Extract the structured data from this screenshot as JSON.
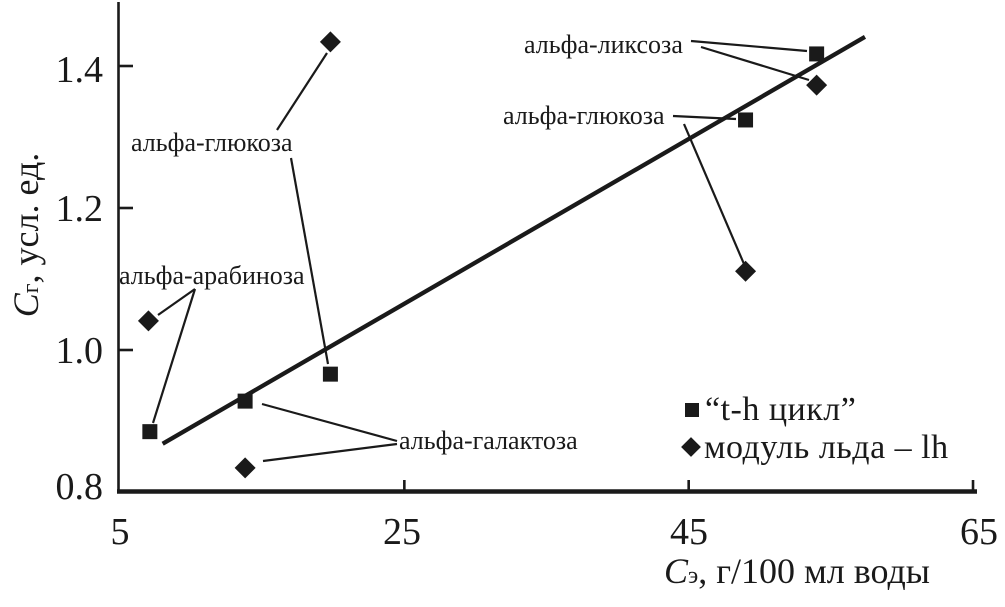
{
  "figure": {
    "background": "#ffffff",
    "ink_color": "#1a1a1a",
    "y_axis": {
      "title": {
        "symbol": "C",
        "subscript": "г",
        "rest": ", усл. ед."
      },
      "tick_labels": [
        "1.4",
        "1.2",
        "1.0",
        "0.8"
      ]
    },
    "x_axis": {
      "title": {
        "symbol": "C",
        "subscript": "э",
        "rest": ", г/100 мл воды"
      },
      "tick_labels": [
        "5",
        "25",
        "45",
        "65"
      ]
    },
    "annotations": {
      "glucose_left": "альфа-глюкоза",
      "arabinose": "альфа-арабиноза",
      "galactose": "альфа-галактоза",
      "lyxose": "альфа-ликсоза",
      "glucose_right": "альфа-глюкоза"
    },
    "legend": {
      "items": [
        {
          "marker": "square",
          "label": "“t-h цикл”"
        },
        {
          "marker": "diamond",
          "label": "модуль льда – lh"
        }
      ]
    }
  },
  "chart_data": {
    "type": "scatter",
    "title": "",
    "xlabel": "Cэ, г/100 мл воды",
    "ylabel": "Cг, усл. ед.",
    "xlim": [
      5,
      65
    ],
    "ylim": [
      0.8,
      1.45
    ],
    "x_ticks": [
      5,
      25,
      45,
      65
    ],
    "y_ticks": [
      0.8,
      1.0,
      1.2,
      1.4
    ],
    "grid": false,
    "legend_position": "lower right",
    "series": [
      {
        "name": "“t-h цикл”",
        "marker": "square",
        "points": [
          {
            "x": 7.1,
            "y": 0.885,
            "label": "альфа-арабиноза"
          },
          {
            "x": 13.8,
            "y": 0.928,
            "label": "альфа-галактоза"
          },
          {
            "x": 19.8,
            "y": 0.966,
            "label": "альфа-глюкоза"
          },
          {
            "x": 49.0,
            "y": 1.324,
            "label": "альфа-глюкоза"
          },
          {
            "x": 54.0,
            "y": 1.417,
            "label": "альфа-ликсоза"
          }
        ]
      },
      {
        "name": "модуль льда – lh",
        "marker": "diamond",
        "points": [
          {
            "x": 7.0,
            "y": 1.041,
            "label": "альфа-арабиноза"
          },
          {
            "x": 13.8,
            "y": 0.834,
            "label": "альфа-галактоза"
          },
          {
            "x": 19.8,
            "y": 1.434,
            "label": "альфа-глюкоза"
          },
          {
            "x": 49.0,
            "y": 1.111,
            "label": "альфа-глюкоза"
          },
          {
            "x": 54.0,
            "y": 1.373,
            "label": "альфа-ликсоза"
          }
        ]
      }
    ],
    "trend_line": {
      "x1": 8.0,
      "y1": 0.868,
      "x2": 57.4,
      "y2": 1.441
    }
  }
}
